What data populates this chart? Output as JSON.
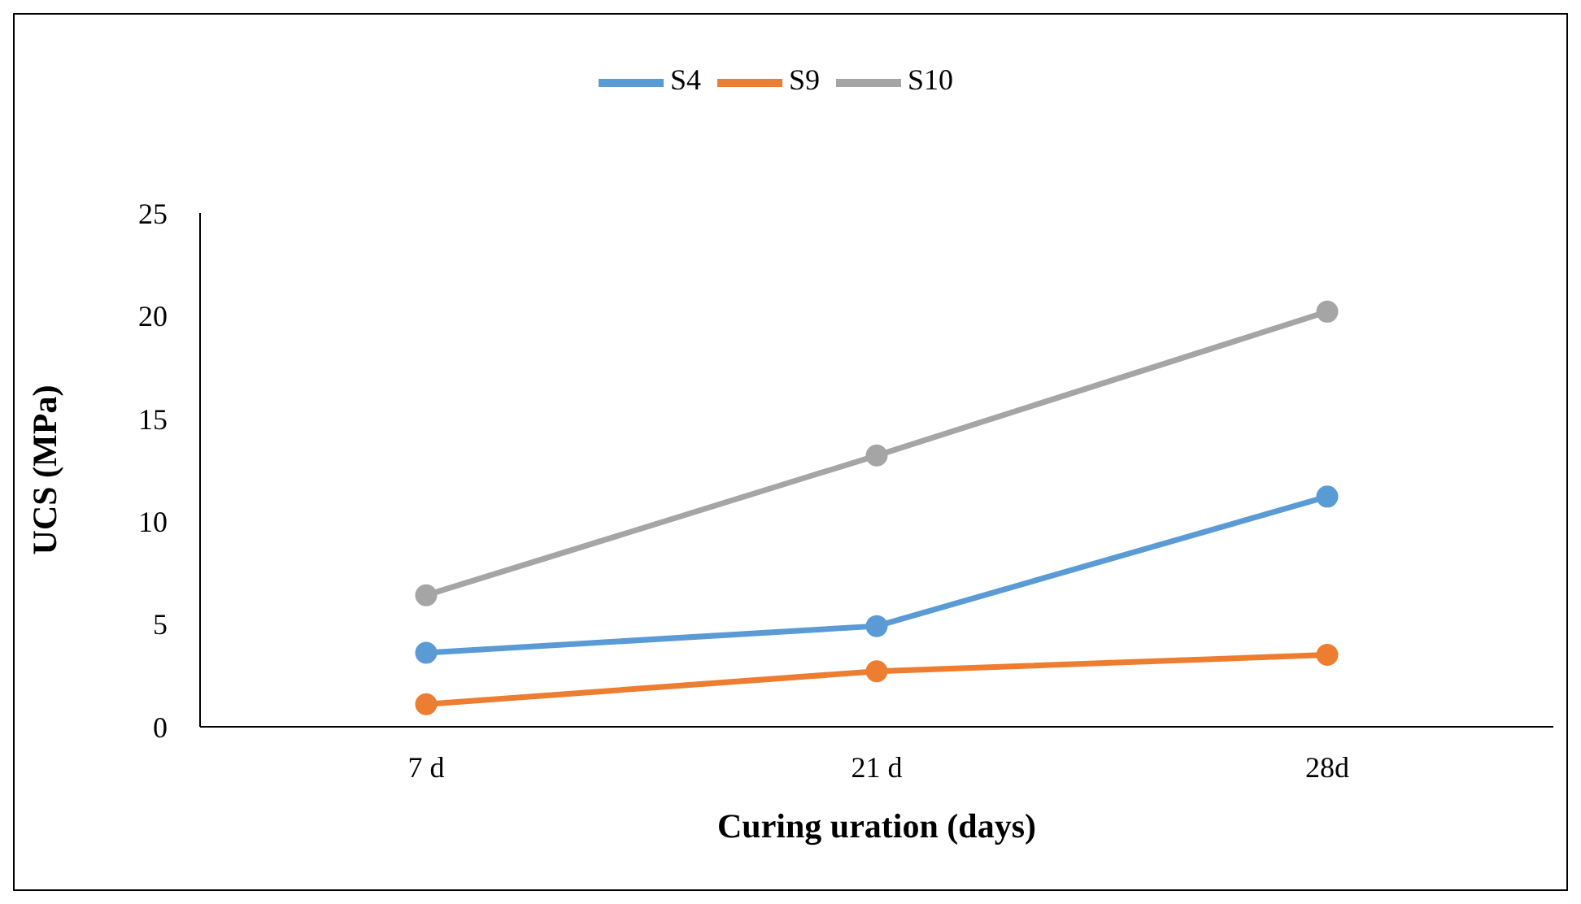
{
  "chart_data": {
    "type": "line",
    "xlabel": "Curing uration (days)",
    "ylabel": "UCS (MPa)",
    "categories": [
      "7 d",
      "21 d",
      "28d"
    ],
    "series": [
      {
        "name": "S4",
        "color": "#5b9bd5",
        "values": [
          3.6,
          4.9,
          11.2
        ]
      },
      {
        "name": "S9",
        "color": "#ed7d31",
        "values": [
          1.1,
          2.7,
          3.5
        ]
      },
      {
        "name": "S10",
        "color": "#a5a5a5",
        "values": [
          6.4,
          13.2,
          20.2
        ]
      }
    ],
    "ylim": [
      0,
      25
    ],
    "yticks": [
      0,
      5,
      10,
      15,
      20,
      25
    ],
    "grid": false,
    "legend": "top",
    "marker": "circle",
    "line_style": "solid"
  }
}
